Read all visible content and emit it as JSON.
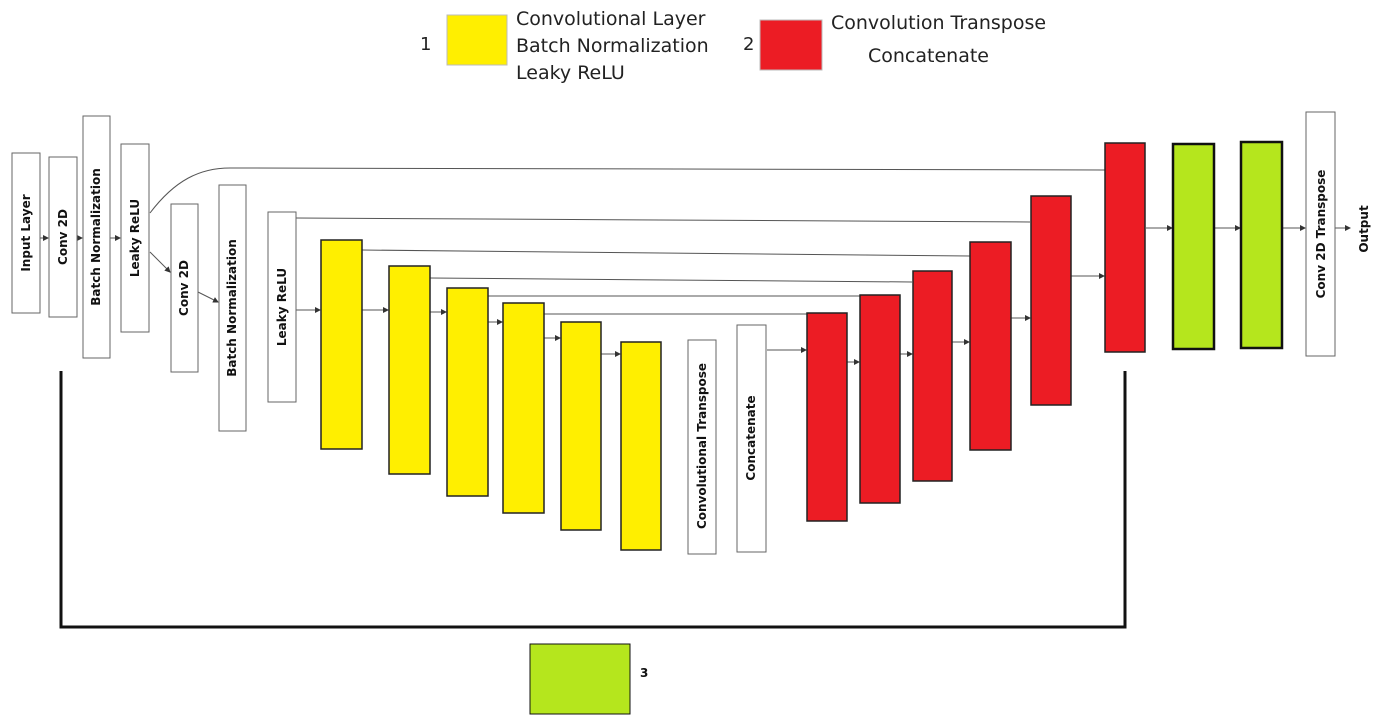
{
  "legend": {
    "item1": {
      "number": "1",
      "color": "#ffef00",
      "lines": [
        "Convolutional Layer",
        "Batch Normalization",
        "Leaky ReLU"
      ]
    },
    "item2": {
      "number": "2",
      "color": "#ec1c24",
      "lines": [
        "Convolution Transpose",
        "Concatenate"
      ]
    },
    "item3": {
      "number": "3",
      "color": "#b5e61d"
    }
  },
  "layers": {
    "input_layer": "Input Layer",
    "conv1": "Conv 2D",
    "bn1": "Batch Normalization",
    "lrelu1": "Leaky ReLU",
    "conv2": "Conv 2D",
    "bn2": "Batch Normalization",
    "lrelu2": "Leaky ReLU",
    "conv_transpose": "Convolutional Transpose",
    "concatenate": "Concatenate",
    "conv2d_transpose": "Conv 2D Transpose",
    "output": "Output"
  },
  "colors": {
    "yellow": "#ffef00",
    "red": "#ec1c24",
    "green": "#b5e61d",
    "stroke": "#222222"
  }
}
